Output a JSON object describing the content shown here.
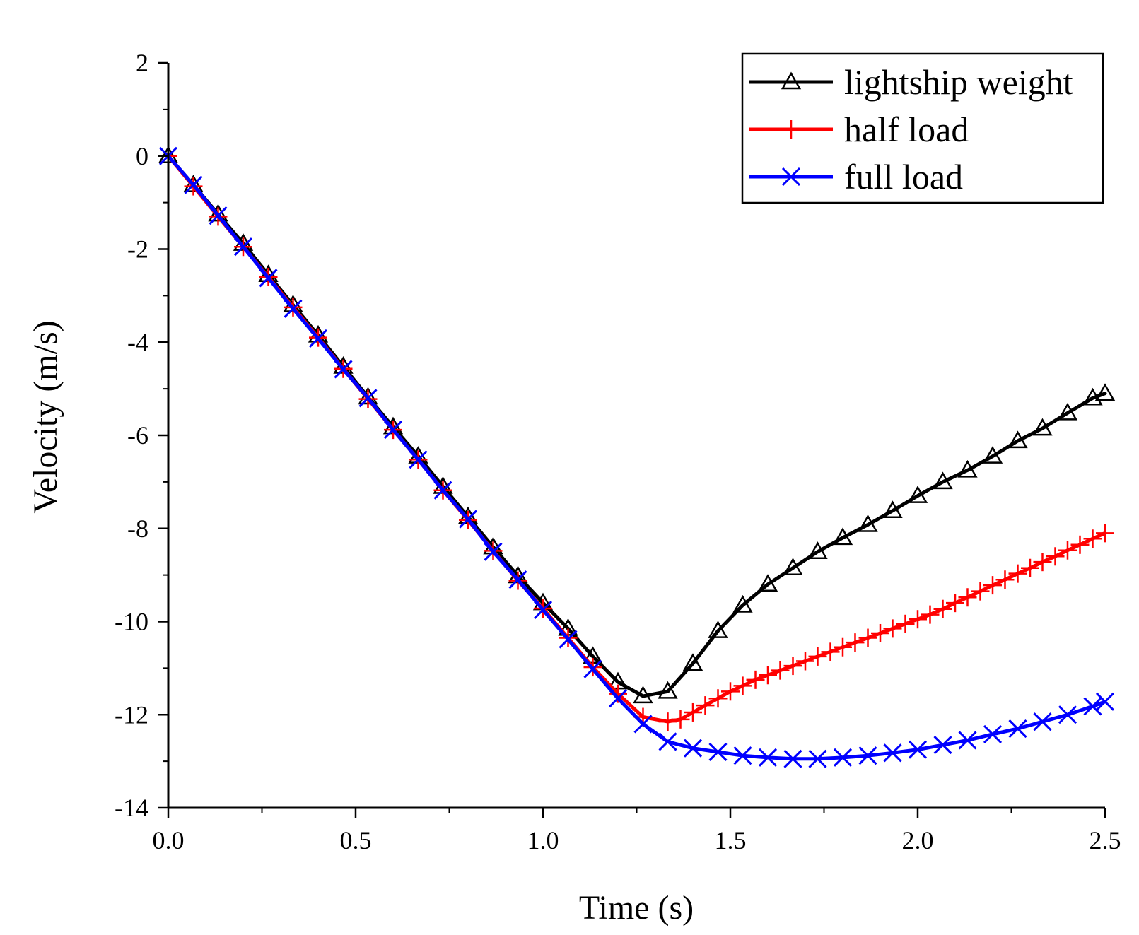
{
  "chart_data": {
    "type": "line",
    "title": "",
    "xlabel": "Time (s)",
    "ylabel": "Velocity (m/s)",
    "xlim": [
      0.0,
      2.5
    ],
    "ylim": [
      -14,
      2
    ],
    "x_ticks": [
      0.0,
      0.5,
      1.0,
      1.5,
      2.0,
      2.5
    ],
    "x_tick_labels": [
      "0.0",
      "0.5",
      "1.0",
      "1.5",
      "2.0",
      "2.5"
    ],
    "y_ticks": [
      2,
      0,
      -2,
      -4,
      -6,
      -8,
      -10,
      -12,
      -14
    ],
    "y_tick_labels": [
      "2",
      "0",
      "-2",
      "-4",
      "-6",
      "-8",
      "-10",
      "-12",
      "-14"
    ],
    "grid": false,
    "legend_position": "top-right",
    "series": [
      {
        "name": "lightship weight",
        "color": "#000000",
        "marker": "triangle-open",
        "x": [
          0.0,
          0.067,
          0.133,
          0.2,
          0.267,
          0.333,
          0.4,
          0.467,
          0.533,
          0.6,
          0.667,
          0.733,
          0.8,
          0.867,
          0.933,
          1.0,
          1.067,
          1.133,
          1.2,
          1.267,
          1.333,
          1.4,
          1.467,
          1.533,
          1.6,
          1.667,
          1.733,
          1.8,
          1.867,
          1.933,
          2.0,
          2.067,
          2.133,
          2.2,
          2.267,
          2.333,
          2.4,
          2.467,
          2.5
        ],
        "y": [
          0.0,
          -0.62,
          -1.25,
          -1.88,
          -2.55,
          -3.2,
          -3.85,
          -4.52,
          -5.18,
          -5.82,
          -6.45,
          -7.1,
          -7.75,
          -8.4,
          -9.02,
          -9.6,
          -10.15,
          -10.75,
          -11.3,
          -11.6,
          -11.5,
          -10.9,
          -10.2,
          -9.65,
          -9.2,
          -8.85,
          -8.5,
          -8.2,
          -7.92,
          -7.62,
          -7.3,
          -7.0,
          -6.75,
          -6.45,
          -6.12,
          -5.85,
          -5.52,
          -5.2,
          -5.1
        ]
      },
      {
        "name": "half load",
        "color": "#ff0000",
        "marker": "plus",
        "x": [
          0.0,
          0.067,
          0.133,
          0.2,
          0.267,
          0.333,
          0.4,
          0.467,
          0.533,
          0.6,
          0.667,
          0.733,
          0.8,
          0.867,
          0.933,
          1.0,
          1.067,
          1.133,
          1.2,
          1.267,
          1.333,
          1.367,
          1.4,
          1.433,
          1.467,
          1.5,
          1.533,
          1.567,
          1.6,
          1.633,
          1.667,
          1.7,
          1.733,
          1.767,
          1.8,
          1.833,
          1.867,
          1.9,
          1.933,
          1.967,
          2.0,
          2.033,
          2.067,
          2.1,
          2.133,
          2.167,
          2.2,
          2.233,
          2.267,
          2.3,
          2.333,
          2.367,
          2.4,
          2.433,
          2.467,
          2.5
        ],
        "y": [
          0.0,
          -0.65,
          -1.3,
          -1.95,
          -2.6,
          -3.25,
          -3.9,
          -4.57,
          -5.22,
          -5.88,
          -6.52,
          -7.18,
          -7.82,
          -8.48,
          -9.12,
          -9.72,
          -10.35,
          -10.98,
          -11.55,
          -12.05,
          -12.15,
          -12.1,
          -11.95,
          -11.8,
          -11.65,
          -11.5,
          -11.38,
          -11.25,
          -11.15,
          -11.05,
          -10.95,
          -10.85,
          -10.75,
          -10.65,
          -10.55,
          -10.45,
          -10.35,
          -10.25,
          -10.15,
          -10.05,
          -9.95,
          -9.85,
          -9.73,
          -9.6,
          -9.48,
          -9.35,
          -9.22,
          -9.1,
          -8.97,
          -8.85,
          -8.72,
          -8.6,
          -8.47,
          -8.35,
          -8.22,
          -8.1
        ]
      },
      {
        "name": "full load",
        "color": "#0000ff",
        "marker": "x",
        "x": [
          0.0,
          0.067,
          0.133,
          0.2,
          0.267,
          0.333,
          0.4,
          0.467,
          0.533,
          0.6,
          0.667,
          0.733,
          0.8,
          0.867,
          0.933,
          1.0,
          1.067,
          1.133,
          1.2,
          1.267,
          1.333,
          1.4,
          1.467,
          1.533,
          1.6,
          1.667,
          1.733,
          1.8,
          1.867,
          1.933,
          2.0,
          2.067,
          2.133,
          2.2,
          2.267,
          2.333,
          2.4,
          2.467,
          2.5
        ],
        "y": [
          0.0,
          -0.62,
          -1.28,
          -1.95,
          -2.62,
          -3.28,
          -3.92,
          -4.58,
          -5.2,
          -5.88,
          -6.52,
          -7.18,
          -7.8,
          -8.5,
          -9.1,
          -9.75,
          -10.38,
          -11.02,
          -11.65,
          -12.2,
          -12.58,
          -12.72,
          -12.8,
          -12.88,
          -12.92,
          -12.95,
          -12.95,
          -12.92,
          -12.88,
          -12.82,
          -12.75,
          -12.65,
          -12.55,
          -12.42,
          -12.3,
          -12.15,
          -12.0,
          -11.82,
          -11.72
        ]
      }
    ]
  }
}
